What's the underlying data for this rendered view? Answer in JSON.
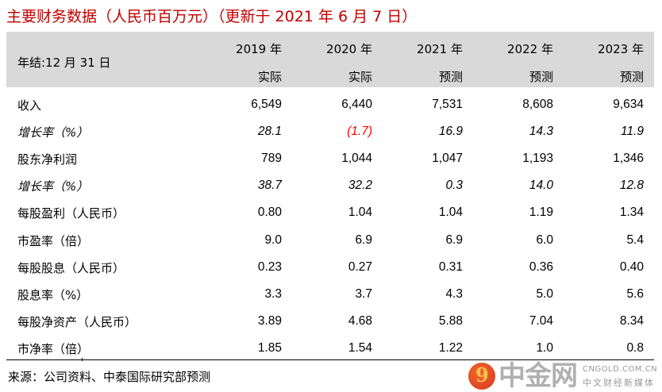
{
  "title": "主要财务数据（人民币百万元）（更新于 2021 年 6 月 7 日）",
  "header": {
    "label": "年结:12 月 31 日",
    "columns": [
      {
        "year": "2019 年",
        "type": "实际"
      },
      {
        "year": "2020 年",
        "type": "实际"
      },
      {
        "year": "2021 年",
        "type": "预测"
      },
      {
        "year": "2022 年",
        "type": "预测"
      },
      {
        "year": "2023 年",
        "type": "预测"
      }
    ]
  },
  "rows": [
    {
      "label": "收入",
      "italic": false,
      "values": [
        "6,549",
        "6,440",
        "7,531",
        "8,608",
        "9,634"
      ]
    },
    {
      "label": "增长率（%）",
      "italic": true,
      "values": [
        "28.1",
        "(1.7)",
        "16.9",
        "14.3",
        "11.9"
      ]
    },
    {
      "label": "股东净利润",
      "italic": false,
      "values": [
        "789",
        "1,044",
        "1,047",
        "1,193",
        "1,346"
      ]
    },
    {
      "label": "增长率（%）",
      "italic": true,
      "values": [
        "38.7",
        "32.2",
        "0.3",
        "14.0",
        "12.8"
      ]
    },
    {
      "label": "每股盈利（人民币）",
      "italic": false,
      "values": [
        "0.80",
        "1.04",
        "1.04",
        "1.19",
        "1.34"
      ]
    },
    {
      "label": "市盈率（倍）",
      "italic": false,
      "values": [
        "9.0",
        "6.9",
        "6.9",
        "6.0",
        "5.4"
      ]
    },
    {
      "label": "每股股息（人民币）",
      "italic": false,
      "values": [
        "0.23",
        "0.27",
        "0.31",
        "0.36",
        "0.40"
      ]
    },
    {
      "label": "股息率（%）",
      "italic": false,
      "values": [
        "3.3",
        "3.7",
        "4.3",
        "5.0",
        "5.6"
      ]
    },
    {
      "label": "每股净资产（人民币）",
      "italic": false,
      "values": [
        "3.89",
        "4.68",
        "5.88",
        "7.04",
        "8.34"
      ]
    },
    {
      "label": "市净率（倍）",
      "italic": false,
      "values": [
        "1.85",
        "1.54",
        "1.22",
        "1.0",
        "0.8"
      ]
    }
  ],
  "negative_color": "#ff0000",
  "title_color": "#c00000",
  "header_bg": "#d9d9d9",
  "source": "来源：公司资料、中泰国际研究部预测",
  "watermark": {
    "brand": "中金网",
    "url": "CNGOLD.COM.CN",
    "tagline": "中文财经新媒体"
  }
}
